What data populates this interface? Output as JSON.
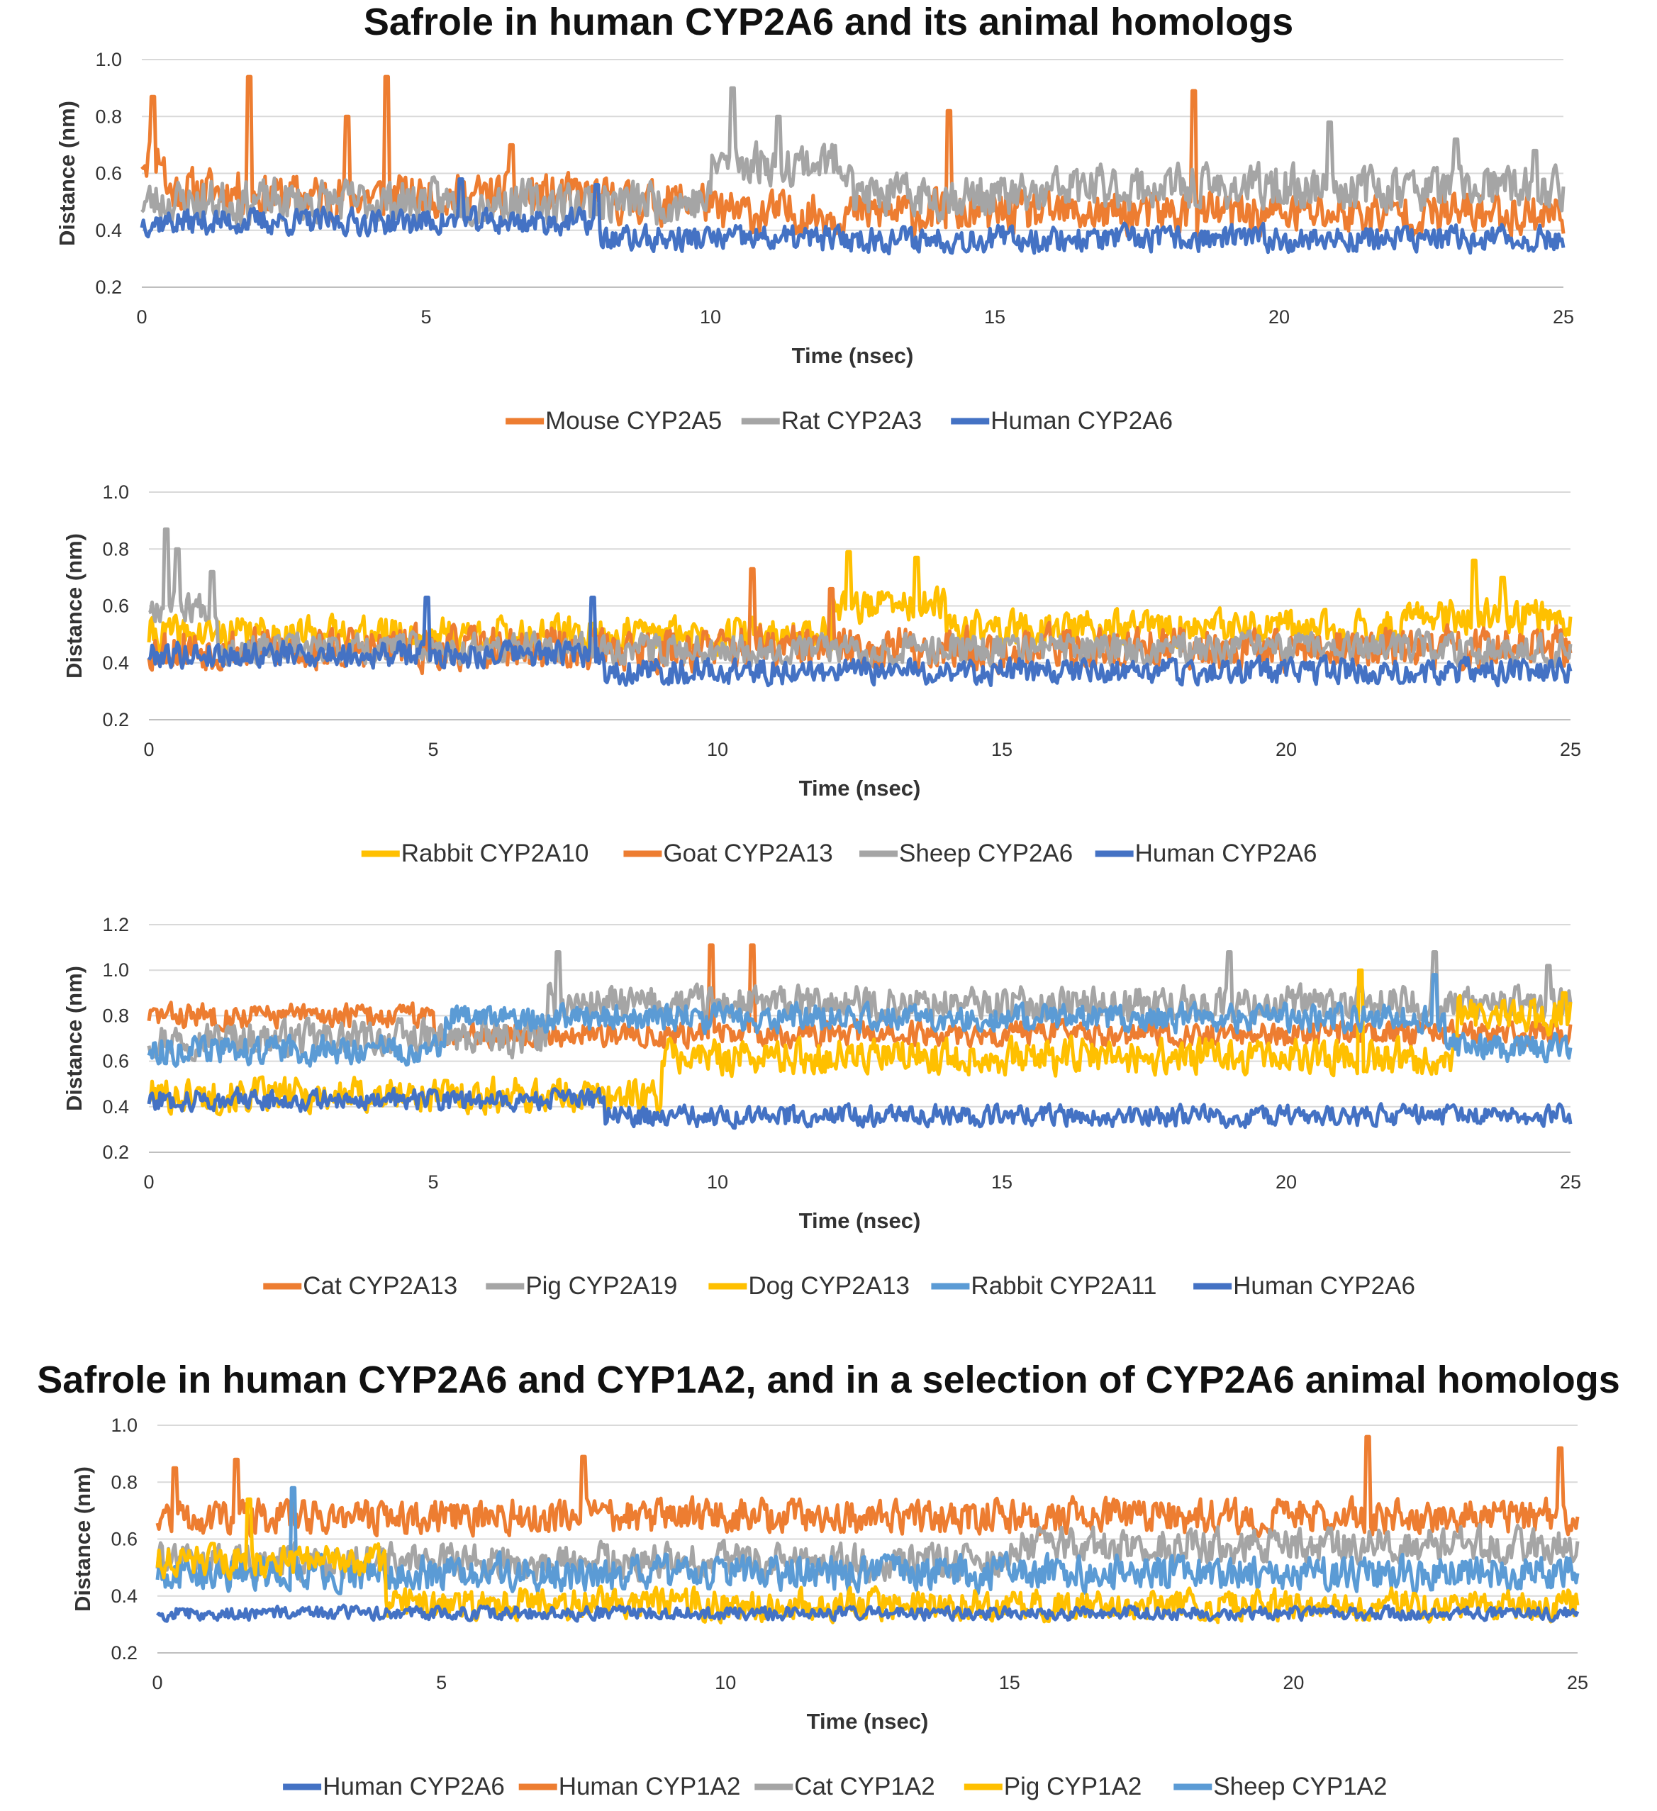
{
  "titles": {
    "top": "Safrole in human CYP2A6 and its animal homologs",
    "bottom": "Safrole in human CYP2A6 and CYP1A2, and in a selection of CYP2A6 animal homologs"
  },
  "colors": {
    "orange": "#ED7D31",
    "gray": "#A5A5A5",
    "blue": "#4472C4",
    "yellow": "#FFC000",
    "lightblue": "#5B9BD5",
    "grid": "#D9D9D9",
    "axis": "#BFBFBF"
  },
  "chart_data": [
    {
      "type": "line",
      "title": "",
      "xlabel": "Time (nsec)",
      "ylabel": "Distance (nm)",
      "xlim": [
        0,
        25
      ],
      "ylim": [
        0.2,
        1.0
      ],
      "xticks": [
        0,
        5,
        10,
        15,
        20,
        25
      ],
      "yticks": [
        "0.2",
        "0.4",
        "0.6",
        "0.8",
        "1.0"
      ],
      "grid": true,
      "legend_position": "bottom",
      "series": [
        {
          "name": "Mouse CYP2A5",
          "color": "#ED7D31",
          "mean": 0.52,
          "amp": 0.1,
          "seed": 11,
          "segments": [
            [
              0,
              0.4,
              0.66
            ],
            [
              0.4,
              2,
              0.54
            ],
            [
              2,
              8,
              0.52
            ],
            [
              8,
              10,
              0.5
            ],
            [
              10,
              25,
              0.46
            ]
          ],
          "spikes": [
            [
              0.2,
              0.87
            ],
            [
              1.9,
              0.94
            ],
            [
              4.3,
              0.94
            ],
            [
              3.6,
              0.8
            ],
            [
              6.5,
              0.7
            ],
            [
              14.2,
              0.82
            ],
            [
              18.5,
              0.89
            ]
          ]
        },
        {
          "name": "Rat CYP2A3",
          "color": "#A5A5A5",
          "mean": 0.5,
          "amp": 0.1,
          "seed": 23,
          "segments": [
            [
              0,
              10,
              0.5
            ],
            [
              10,
              12.5,
              0.64
            ],
            [
              12.5,
              16,
              0.52
            ],
            [
              16,
              25,
              0.55
            ]
          ],
          "spikes": [
            [
              10.4,
              0.9
            ],
            [
              11.2,
              0.8
            ],
            [
              20.9,
              0.78
            ],
            [
              23.1,
              0.72
            ],
            [
              24.5,
              0.68
            ]
          ]
        },
        {
          "name": "Human CYP2A6",
          "color": "#4472C4",
          "mean": 0.41,
          "amp": 0.06,
          "seed": 37,
          "segments": [
            [
              0,
              8,
              0.43
            ],
            [
              8,
              25,
              0.37
            ]
          ],
          "spikes": [
            [
              5.6,
              0.58
            ],
            [
              8.0,
              0.56
            ]
          ]
        }
      ]
    },
    {
      "type": "line",
      "title": "",
      "xlabel": "Time (nsec)",
      "ylabel": "Distance (nm)",
      "xlim": [
        0,
        25
      ],
      "ylim": [
        0.2,
        1.0
      ],
      "xticks": [
        0,
        5,
        10,
        15,
        20,
        25
      ],
      "yticks": [
        "0.2",
        "0.4",
        "0.6",
        "0.8",
        "1.0"
      ],
      "grid": true,
      "legend_position": "bottom",
      "series": [
        {
          "name": "Rabbit CYP2A10",
          "color": "#FFC000",
          "mean": 0.5,
          "amp": 0.08,
          "seed": 41,
          "segments": [
            [
              0,
              12,
              0.5
            ],
            [
              12,
              14,
              0.6
            ],
            [
              14,
              22,
              0.52
            ],
            [
              22,
              25,
              0.56
            ]
          ],
          "spikes": [
            [
              12.3,
              0.79
            ],
            [
              13.5,
              0.77
            ],
            [
              23.3,
              0.76
            ],
            [
              23.8,
              0.7
            ]
          ]
        },
        {
          "name": "Goat CYP2A13",
          "color": "#ED7D31",
          "mean": 0.45,
          "amp": 0.1,
          "seed": 53,
          "segments": [
            [
              0,
              25,
              0.45
            ]
          ],
          "spikes": [
            [
              10.6,
              0.73
            ],
            [
              12.0,
              0.66
            ]
          ]
        },
        {
          "name": "Sheep CYP2A6",
          "color": "#A5A5A5",
          "mean": 0.42,
          "amp": 0.07,
          "seed": 67,
          "segments": [
            [
              0,
              1.2,
              0.6
            ],
            [
              1.2,
              25,
              0.45
            ]
          ],
          "spikes": [
            [
              0.3,
              0.87
            ],
            [
              0.5,
              0.8
            ],
            [
              1.1,
              0.72
            ]
          ]
        },
        {
          "name": "Human CYP2A6",
          "color": "#4472C4",
          "mean": 0.41,
          "amp": 0.06,
          "seed": 79,
          "segments": [
            [
              0,
              8,
              0.43
            ],
            [
              8,
              25,
              0.37
            ]
          ],
          "spikes": [
            [
              4.9,
              0.63
            ],
            [
              7.8,
              0.63
            ]
          ]
        }
      ]
    },
    {
      "type": "line",
      "title": "",
      "xlabel": "Time (nsec)",
      "ylabel": "Distance (nm)",
      "xlim": [
        0,
        25
      ],
      "ylim": [
        0.2,
        1.2
      ],
      "xticks": [
        0,
        5,
        10,
        15,
        20,
        25
      ],
      "yticks": [
        "0.2",
        "0.4",
        "0.6",
        "0.8",
        "1.0",
        "1.2"
      ],
      "grid": true,
      "legend_position": "bottom",
      "series": [
        {
          "name": "Cat CYP2A13",
          "color": "#ED7D31",
          "mean": 0.8,
          "amp": 0.07,
          "seed": 83,
          "segments": [
            [
              0,
              5,
              0.8
            ],
            [
              5,
              25,
              0.72
            ]
          ],
          "spikes": [
            [
              9.9,
              1.11
            ],
            [
              10.6,
              1.11
            ]
          ]
        },
        {
          "name": "Pig CYP2A19",
          "color": "#A5A5A5",
          "mean": 0.75,
          "amp": 0.1,
          "seed": 97,
          "segments": [
            [
              0,
              7,
              0.7
            ],
            [
              7,
              25,
              0.85
            ]
          ],
          "spikes": [
            [
              7.2,
              1.08
            ],
            [
              19.0,
              1.08
            ],
            [
              22.6,
              1.08
            ],
            [
              24.6,
              1.02
            ]
          ]
        },
        {
          "name": "Dog CYP2A13",
          "color": "#FFC000",
          "mean": 0.62,
          "amp": 0.1,
          "seed": 101,
          "segments": [
            [
              0,
              9,
              0.45
            ],
            [
              9,
              18,
              0.62
            ],
            [
              18,
              23,
              0.62
            ],
            [
              23,
              25,
              0.8
            ]
          ],
          "spikes": [
            [
              21.3,
              1.0
            ],
            [
              24.9,
              0.9
            ]
          ]
        },
        {
          "name": "Rabbit CYP2A11",
          "color": "#5B9BD5",
          "mean": 0.77,
          "amp": 0.08,
          "seed": 113,
          "segments": [
            [
              0,
              5.2,
              0.65
            ],
            [
              5.2,
              22.8,
              0.79
            ],
            [
              22.8,
              25,
              0.66
            ]
          ],
          "spikes": [
            [
              22.6,
              0.98
            ]
          ]
        },
        {
          "name": "Human CYP2A6",
          "color": "#4472C4",
          "mean": 0.4,
          "amp": 0.06,
          "seed": 127,
          "segments": [
            [
              0,
              8,
              0.43
            ],
            [
              8,
              25,
              0.36
            ]
          ],
          "spikes": []
        }
      ]
    },
    {
      "type": "line",
      "title": "",
      "xlabel": "Time (nsec)",
      "ylabel": "Distance (nm)",
      "xlim": [
        0,
        25
      ],
      "ylim": [
        0.2,
        1.0
      ],
      "xticks": [
        0,
        5,
        10,
        15,
        20,
        25
      ],
      "yticks": [
        "0.2",
        "0.4",
        "0.6",
        "0.8",
        "1.0"
      ],
      "grid": true,
      "legend_position": "bottom",
      "series": [
        {
          "name": "Human CYP1A2",
          "color": "#ED7D31",
          "mean": 0.68,
          "amp": 0.08,
          "seed": 131,
          "segments": [
            [
              0,
              25,
              0.68
            ]
          ],
          "spikes": [
            [
              0.3,
              0.85
            ],
            [
              1.4,
              0.88
            ],
            [
              7.5,
              0.89
            ],
            [
              21.3,
              0.96
            ],
            [
              24.7,
              0.92
            ]
          ]
        },
        {
          "name": "Cat CYP1A2",
          "color": "#A5A5A5",
          "mean": 0.55,
          "amp": 0.08,
          "seed": 139,
          "segments": [
            [
              0,
              15,
              0.52
            ],
            [
              15,
              25,
              0.58
            ]
          ],
          "spikes": []
        },
        {
          "name": "Sheep CYP1A2",
          "color": "#5B9BD5",
          "mean": 0.48,
          "amp": 0.08,
          "seed": 149,
          "segments": [
            [
              0,
              25,
              0.48
            ]
          ],
          "spikes": [
            [
              2.4,
              0.78
            ]
          ]
        },
        {
          "name": "Pig CYP1A2",
          "color": "#FFC000",
          "mean": 0.4,
          "amp": 0.07,
          "seed": 151,
          "segments": [
            [
              0,
              4,
              0.52
            ],
            [
              4,
              25,
              0.37
            ]
          ],
          "spikes": [
            [
              1.6,
              0.74
            ]
          ]
        },
        {
          "name": "Human CYP2A6",
          "color": "#4472C4",
          "mean": 0.34,
          "amp": 0.03,
          "seed": 157,
          "segments": [
            [
              0,
              25,
              0.34
            ]
          ],
          "spikes": []
        }
      ],
      "legend_order": [
        "Human CYP2A6",
        "Human CYP1A2",
        "Cat CYP1A2",
        "Pig CYP1A2",
        "Sheep CYP1A2"
      ]
    }
  ]
}
